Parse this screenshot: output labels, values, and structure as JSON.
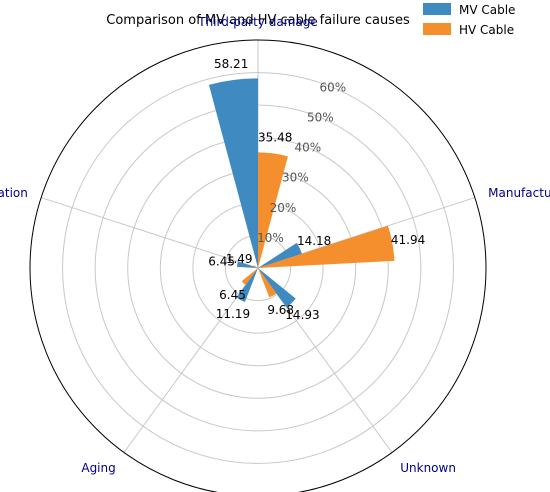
{
  "chart_data": {
    "type": "polar-bar",
    "title": "Comparison of MV and HV cable failure causes",
    "categories": [
      "Third-party damage",
      "Manufacturing quality",
      "Unknown",
      "Aging",
      "Installation"
    ],
    "series": [
      {
        "name": "MV Cable",
        "color": "#3f8ac0",
        "values": [
          58.21,
          14.18,
          14.93,
          11.19,
          6.45
        ]
      },
      {
        "name": "HV Cable",
        "color": "#f58f2d",
        "values": [
          35.48,
          41.94,
          9.68,
          6.45,
          1.49
        ]
      }
    ],
    "rlim": [
      0,
      70
    ],
    "radial_ticks": [
      "10%",
      "20%",
      "30%",
      "40%",
      "50%",
      "60%"
    ],
    "grid": true,
    "legend_position": "top-right"
  }
}
